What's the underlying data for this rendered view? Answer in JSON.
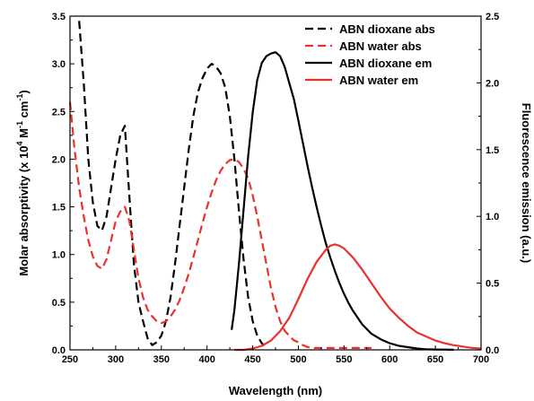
{
  "chart_data": {
    "type": "line",
    "xlabel": "Wavelength (nm)",
    "ylabel_left": "Molar absorptivity (x 10",
    "ylabel_left_exp1": "4",
    "ylabel_left_mid": " M",
    "ylabel_left_exp2": "-1",
    "ylabel_left_mid2": " cm",
    "ylabel_left_exp3": "-1",
    "ylabel_left_end": ")",
    "ylabel_right": "Fluorescence emission (a.u.)",
    "xlim": [
      250,
      700
    ],
    "ylim_left": [
      0,
      3.5
    ],
    "ylim_right": [
      0,
      2.5
    ],
    "x_ticks": [
      250,
      300,
      350,
      400,
      450,
      500,
      550,
      600,
      650,
      700
    ],
    "x_tick_labels": [
      "250",
      "300",
      "350",
      "400",
      "450",
      "500",
      "550",
      "600",
      "650",
      "700"
    ],
    "y_left_ticks": [
      0.0,
      0.5,
      1.0,
      1.5,
      2.0,
      2.5,
      3.0,
      3.5
    ],
    "y_left_tick_labels": [
      "0.0",
      "0.5",
      "1.0",
      "1.5",
      "2.0",
      "2.5",
      "3.0",
      "3.5"
    ],
    "y_right_ticks": [
      0.0,
      0.5,
      1.0,
      1.5,
      2.0,
      2.5
    ],
    "y_right_tick_labels": [
      "0.0",
      "0.5",
      "1.0",
      "1.5",
      "2.0",
      "2.5"
    ],
    "grid": false,
    "legend_position": "top-right",
    "series": [
      {
        "name": "ABN dioxane abs",
        "axis": "left",
        "style": "dashed",
        "color": "#000000",
        "x": [
          260,
          265,
          270,
          275,
          280,
          285,
          290,
          295,
          300,
          305,
          310,
          315,
          320,
          325,
          330,
          335,
          340,
          345,
          350,
          355,
          360,
          365,
          370,
          375,
          380,
          385,
          390,
          395,
          400,
          405,
          410,
          415,
          420,
          425,
          430,
          435,
          440,
          445,
          450,
          455,
          460,
          465
        ],
        "y": [
          3.45,
          2.8,
          2.0,
          1.55,
          1.3,
          1.25,
          1.4,
          1.7,
          2.0,
          2.25,
          2.35,
          1.6,
          0.9,
          0.5,
          0.3,
          0.12,
          0.05,
          0.08,
          0.15,
          0.3,
          0.55,
          0.9,
          1.3,
          1.7,
          2.1,
          2.45,
          2.7,
          2.85,
          2.95,
          3.0,
          2.97,
          2.9,
          2.75,
          2.45,
          2.0,
          1.45,
          0.95,
          0.55,
          0.3,
          0.15,
          0.07,
          0.02
        ]
      },
      {
        "name": "ABN water abs",
        "axis": "left",
        "style": "dashed",
        "color": "#e8322b",
        "x": [
          250,
          255,
          260,
          265,
          270,
          275,
          280,
          285,
          290,
          295,
          300,
          305,
          310,
          315,
          320,
          325,
          330,
          335,
          340,
          345,
          350,
          355,
          360,
          365,
          370,
          375,
          380,
          385,
          390,
          395,
          400,
          405,
          410,
          415,
          420,
          425,
          430,
          435,
          440,
          445,
          450,
          455,
          460,
          465,
          470,
          475,
          480,
          485,
          490,
          495,
          500,
          505,
          510,
          515,
          520,
          530,
          540,
          550,
          560,
          580
        ],
        "y": [
          2.6,
          2.1,
          1.7,
          1.4,
          1.15,
          0.98,
          0.88,
          0.85,
          0.95,
          1.15,
          1.35,
          1.45,
          1.5,
          1.35,
          1.05,
          0.75,
          0.55,
          0.42,
          0.35,
          0.3,
          0.28,
          0.3,
          0.35,
          0.42,
          0.52,
          0.65,
          0.8,
          0.97,
          1.15,
          1.33,
          1.5,
          1.65,
          1.78,
          1.88,
          1.95,
          1.99,
          2.0,
          1.97,
          1.9,
          1.8,
          1.62,
          1.4,
          1.15,
          0.9,
          0.65,
          0.45,
          0.3,
          0.2,
          0.15,
          0.1,
          0.08,
          0.05,
          0.03,
          0.02,
          0.02,
          0.02,
          0.02,
          0.02,
          0.02,
          0.02
        ]
      },
      {
        "name": "ABN dioxane em",
        "axis": "right",
        "style": "solid",
        "color": "#000000",
        "x": [
          427,
          430,
          435,
          440,
          445,
          450,
          455,
          460,
          465,
          470,
          475,
          480,
          485,
          490,
          495,
          500,
          505,
          510,
          515,
          520,
          525,
          530,
          535,
          540,
          545,
          550,
          555,
          560,
          570,
          580,
          590,
          600,
          610,
          620,
          630,
          640,
          650,
          660,
          670
        ],
        "y": [
          0.15,
          0.3,
          0.65,
          1.05,
          1.45,
          1.78,
          2.02,
          2.15,
          2.2,
          2.22,
          2.23,
          2.2,
          2.12,
          2.0,
          1.88,
          1.72,
          1.55,
          1.38,
          1.22,
          1.07,
          0.93,
          0.8,
          0.69,
          0.59,
          0.5,
          0.42,
          0.35,
          0.29,
          0.19,
          0.12,
          0.08,
          0.05,
          0.03,
          0.02,
          0.01,
          0.005,
          0.003,
          0.002,
          0.001
        ]
      },
      {
        "name": "ABN water em",
        "axis": "right",
        "style": "solid",
        "color": "#e8322b",
        "x": [
          430,
          440,
          450,
          460,
          470,
          480,
          490,
          500,
          510,
          520,
          530,
          535,
          540,
          545,
          550,
          560,
          570,
          580,
          590,
          600,
          610,
          620,
          630,
          640,
          650,
          660,
          670,
          680,
          690,
          700
        ],
        "y": [
          0.0,
          0.0,
          0.01,
          0.03,
          0.07,
          0.14,
          0.24,
          0.38,
          0.53,
          0.66,
          0.75,
          0.78,
          0.79,
          0.78,
          0.76,
          0.69,
          0.6,
          0.5,
          0.4,
          0.31,
          0.24,
          0.18,
          0.13,
          0.1,
          0.07,
          0.05,
          0.035,
          0.025,
          0.015,
          0.01
        ]
      }
    ]
  }
}
